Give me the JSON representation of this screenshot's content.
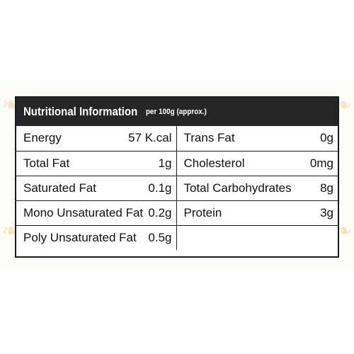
{
  "header": {
    "title": "Nutritional Information",
    "subtitle": "per 100g (approx.)"
  },
  "left_rows": [
    {
      "label": "Energy",
      "value": "57 K.cal"
    },
    {
      "label": "Total Fat",
      "value": "1g"
    },
    {
      "label": "Saturated Fat",
      "value": "0.1g"
    },
    {
      "label": "Mono Unsaturated Fat",
      "value": "0.2g"
    },
    {
      "label": "Poly Unsaturated Fat",
      "value": "0.5g"
    }
  ],
  "right_rows": [
    {
      "label": "Trans Fat",
      "value": "0g"
    },
    {
      "label": "Cholesterol",
      "value": "0mg"
    },
    {
      "label": "Total Carbohydrates",
      "value": "8g"
    },
    {
      "label": "Protein",
      "value": "3g"
    },
    {
      "label": "",
      "value": ""
    }
  ],
  "colors": {
    "header_bg": "#262626",
    "header_text": "#ffffff",
    "border": "#1a1a1a",
    "background_decor": "#f3e6c4"
  }
}
